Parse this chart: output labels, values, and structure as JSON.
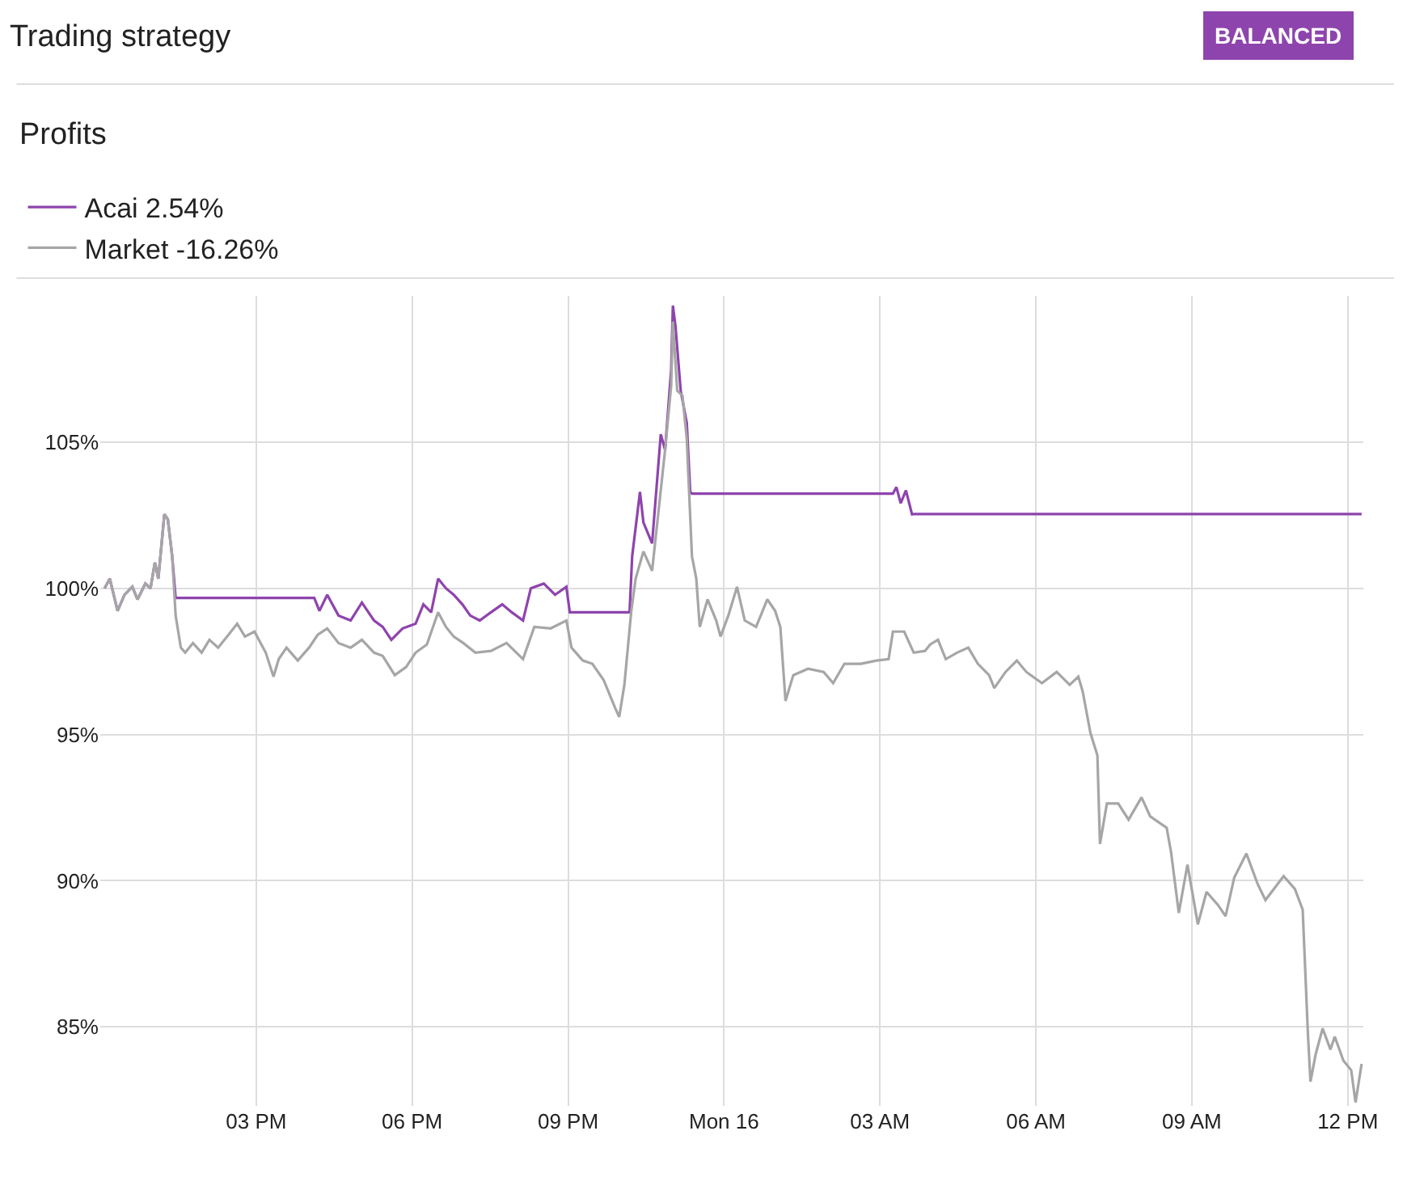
{
  "chart_data": {
    "type": "line",
    "title": "Trading strategy",
    "subtitle": "Profits",
    "annotations": [
      "BALANCED"
    ],
    "xlim": [
      "--01-15T12:00",
      "--01-16T12:18"
    ],
    "xticks": [
      {
        "value": "--01-15T15:00",
        "label": "03 PM"
      },
      {
        "value": "--01-15T18:00",
        "label": "06 PM"
      },
      {
        "value": "--01-15T21:00",
        "label": "09 PM"
      },
      {
        "value": "--01-16T00:00",
        "label": "Mon 16"
      },
      {
        "value": "--01-16T03:00",
        "label": "03 AM"
      },
      {
        "value": "--01-16T06:00",
        "label": "06 AM"
      },
      {
        "value": "--01-16T09:00",
        "label": "09 AM"
      },
      {
        "value": "--01-16T12:00",
        "label": "12 PM"
      }
    ],
    "ylim": [
      82.3,
      110
    ],
    "yticks": [
      {
        "value": 85,
        "label": "85%"
      },
      {
        "value": 90,
        "label": "90%"
      },
      {
        "value": 95,
        "label": "95%"
      },
      {
        "value": 100,
        "label": "100%"
      },
      {
        "value": 105,
        "label": "105%"
      }
    ],
    "grid": true,
    "legend": "top",
    "marker": "none",
    "line_style": "solid",
    "series": [
      {
        "name": "Acai 2.54%",
        "color": "#8e44ad",
        "x": [
          "--01-15T12:05",
          "--01-15T12:11",
          "--01-15T12:20",
          "--01-15T12:28",
          "--01-15T12:37",
          "--01-15T12:43",
          "--01-15T12:52",
          "--01-15T12:58",
          "--01-15T13:03",
          "--01-15T13:07",
          "--01-15T13:14",
          "--01-15T13:18",
          "--01-15T13:23",
          "--01-15T13:27",
          "--01-15T16:07",
          "--01-15T16:13",
          "--01-15T16:22",
          "--01-15T16:35",
          "--01-15T16:49",
          "--01-15T17:02",
          "--01-15T17:16",
          "--01-15T17:26",
          "--01-15T17:36",
          "--01-15T17:49",
          "--01-15T18:04",
          "--01-15T18:13",
          "--01-15T18:22",
          "--01-15T18:30",
          "--01-15T18:39",
          "--01-15T18:48",
          "--01-15T18:58",
          "--01-15T19:07",
          "--01-15T19:18",
          "--01-15T19:31",
          "--01-15T19:44",
          "--01-15T19:55",
          "--01-15T20:08",
          "--01-15T20:17",
          "--01-15T20:32",
          "--01-15T20:45",
          "--01-15T20:58",
          "--01-15T21:02",
          "--01-15T22:11",
          "--01-15T22:14",
          "--01-15T22:23",
          "--01-15T22:27",
          "--01-15T22:37",
          "--01-15T22:47",
          "--01-15T22:52",
          "--01-15T22:59",
          "--01-15T23:01",
          "--01-15T23:04",
          "--01-15T23:10",
          "--01-15T23:17",
          "--01-15T23:21",
          "--01-15T23:23",
          "--01-16T03:15",
          "--01-16T03:19",
          "--01-16T03:24",
          "--01-16T03:30",
          "--01-16T03:37",
          "--01-16T03:39",
          "--01-16T12:16"
        ],
        "values": [
          100.0,
          100.33,
          99.23,
          99.78,
          100.05,
          99.62,
          100.16,
          100.0,
          100.88,
          100.33,
          102.53,
          102.36,
          101.1,
          99.67,
          99.67,
          99.23,
          99.78,
          99.07,
          98.9,
          99.51,
          98.9,
          98.68,
          98.24,
          98.63,
          98.79,
          99.45,
          99.18,
          100.33,
          100.0,
          99.78,
          99.45,
          99.07,
          98.9,
          99.18,
          99.45,
          99.18,
          98.9,
          100.0,
          100.16,
          99.78,
          100.05,
          99.18,
          99.18,
          101.1,
          103.3,
          102.25,
          101.54,
          105.27,
          104.73,
          107.48,
          109.67,
          108.96,
          106.76,
          105.66,
          103.3,
          103.24,
          103.24,
          103.46,
          102.91,
          103.35,
          102.53,
          102.54,
          102.54
        ]
      },
      {
        "name": "Market -16.26%",
        "color": "#a6a6a6",
        "x": [
          "--01-15T12:05",
          "--01-15T12:11",
          "--01-15T12:20",
          "--01-15T12:28",
          "--01-15T12:37",
          "--01-15T12:43",
          "--01-15T12:52",
          "--01-15T12:58",
          "--01-15T13:03",
          "--01-15T13:07",
          "--01-15T13:14",
          "--01-15T13:18",
          "--01-15T13:23",
          "--01-15T13:27",
          "--01-15T13:33",
          "--01-15T13:38",
          "--01-15T13:47",
          "--01-15T13:57",
          "--01-15T14:06",
          "--01-15T14:16",
          "--01-15T14:28",
          "--01-15T14:38",
          "--01-15T14:47",
          "--01-15T14:58",
          "--01-15T15:11",
          "--01-15T15:20",
          "--01-15T15:26",
          "--01-15T15:35",
          "--01-15T15:48",
          "--01-15T16:01",
          "--01-15T16:11",
          "--01-15T16:22",
          "--01-15T16:35",
          "--01-15T16:49",
          "--01-15T17:02",
          "--01-15T17:16",
          "--01-15T17:26",
          "--01-15T17:40",
          "--01-15T17:53",
          "--01-15T18:04",
          "--01-15T18:17",
          "--01-15T18:30",
          "--01-15T18:39",
          "--01-15T18:48",
          "--01-15T18:59",
          "--01-15T19:13",
          "--01-15T19:31",
          "--01-15T19:49",
          "--01-15T20:08",
          "--01-15T20:21",
          "--01-15T20:40",
          "--01-15T20:58",
          "--01-15T21:04",
          "--01-15T21:17",
          "--01-15T21:28",
          "--01-15T21:41",
          "--01-15T21:54",
          "--01-15T21:59",
          "--01-15T22:05",
          "--01-15T22:13",
          "--01-15T22:18",
          "--01-15T22:27",
          "--01-15T22:37",
          "--01-15T22:46",
          "--01-15T22:52",
          "--01-15T22:59",
          "--01-15T23:01",
          "--01-15T23:06",
          "--01-15T23:12",
          "--01-15T23:17",
          "--01-15T23:23",
          "--01-15T23:28",
          "--01-15T23:32",
          "--01-15T23:41",
          "--01-15T23:51",
          "--01-15T23:56",
          "--01-16T00:05",
          "--01-16T00:15",
          "--01-16T00:24",
          "--01-16T00:37",
          "--01-16T00:50",
          "--01-16T00:59",
          "--01-16T01:05",
          "--01-16T01:11",
          "--01-16T01:20",
          "--01-16T01:37",
          "--01-16T01:55",
          "--01-16T02:06",
          "--01-16T02:19",
          "--01-16T02:38",
          "--01-16T02:56",
          "--01-16T03:10",
          "--01-16T03:15",
          "--01-16T03:28",
          "--01-16T03:39",
          "--01-16T03:52",
          "--01-16T03:58",
          "--01-16T04:07",
          "--01-16T04:16",
          "--01-16T04:29",
          "--01-16T04:42",
          "--01-16T04:53",
          "--01-16T05:06",
          "--01-16T05:12",
          "--01-16T05:25",
          "--01-16T05:38",
          "--01-16T05:49",
          "--01-16T06:07",
          "--01-16T06:24",
          "--01-16T06:39",
          "--01-16T06:49",
          "--01-16T06:54",
          "--01-16T07:03",
          "--01-16T07:11",
          "--01-16T07:14",
          "--01-16T07:22",
          "--01-16T07:35",
          "--01-16T07:47",
          "--01-16T08:02",
          "--01-16T08:12",
          "--01-16T08:31",
          "--01-16T08:36",
          "--01-16T08:45",
          "--01-16T08:55",
          "--01-16T09:07",
          "--01-16T09:17",
          "--01-16T09:30",
          "--01-16T09:39",
          "--01-16T09:49",
          "--01-16T10:03",
          "--01-16T10:16",
          "--01-16T10:25",
          "--01-16T10:46",
          "--01-16T10:59",
          "--01-16T11:08",
          "--01-16T11:14",
          "--01-16T11:17",
          "--01-16T11:23",
          "--01-16T11:31",
          "--01-16T11:40",
          "--01-16T11:45",
          "--01-16T11:55",
          "--01-16T12:04",
          "--01-16T12:09",
          "--01-16T12:16"
        ],
        "values": [
          100.0,
          100.33,
          99.23,
          99.78,
          100.05,
          99.62,
          100.16,
          100.0,
          100.88,
          100.33,
          102.53,
          102.36,
          101.1,
          99.07,
          97.97,
          97.8,
          98.13,
          97.8,
          98.24,
          97.97,
          98.41,
          98.79,
          98.35,
          98.52,
          97.8,
          96.98,
          97.58,
          97.97,
          97.53,
          97.97,
          98.41,
          98.63,
          98.13,
          97.97,
          98.24,
          97.8,
          97.69,
          97.03,
          97.31,
          97.8,
          98.08,
          99.18,
          98.68,
          98.35,
          98.13,
          97.8,
          97.86,
          98.13,
          97.58,
          98.68,
          98.63,
          98.9,
          97.97,
          97.53,
          97.42,
          96.87,
          95.93,
          95.6,
          96.7,
          99.23,
          100.33,
          101.26,
          100.6,
          103.08,
          104.73,
          106.92,
          109.12,
          106.76,
          106.59,
          105.11,
          101.1,
          100.33,
          98.68,
          99.62,
          98.9,
          98.35,
          99.07,
          100.05,
          98.9,
          98.68,
          99.62,
          99.23,
          98.68,
          96.15,
          97.03,
          97.25,
          97.14,
          96.76,
          97.42,
          97.42,
          97.53,
          97.58,
          98.52,
          98.52,
          97.8,
          97.86,
          98.08,
          98.24,
          97.58,
          97.8,
          97.97,
          97.42,
          97.03,
          96.59,
          97.14,
          97.53,
          97.14,
          96.76,
          97.14,
          96.7,
          96.98,
          96.48,
          95.05,
          94.29,
          91.26,
          92.64,
          92.64,
          92.09,
          92.85,
          92.2,
          91.81,
          90.99,
          88.9,
          90.55,
          88.51,
          89.62,
          89.18,
          88.79,
          90.11,
          90.93,
          89.89,
          89.34,
          90.16,
          89.72,
          89.01,
          84.78,
          83.13,
          84.07,
          84.95,
          84.23,
          84.67,
          83.85,
          83.52,
          82.42,
          83.74
        ]
      }
    ]
  }
}
